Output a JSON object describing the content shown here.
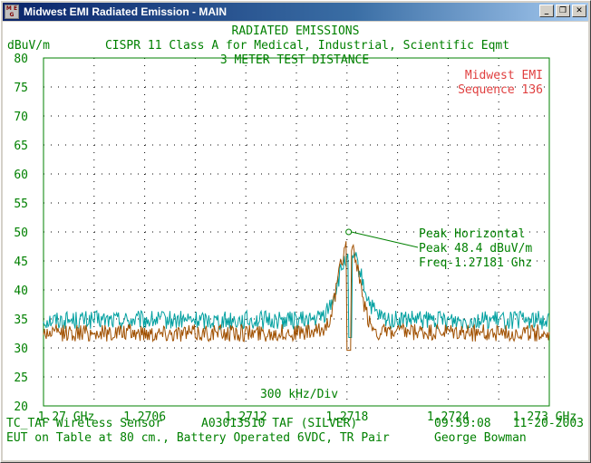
{
  "window": {
    "title": "Midwest EMI Radiated Emission - MAIN",
    "icon_label": "M E G",
    "buttons": {
      "minimize": "_",
      "maximize": "❐",
      "close": "✕"
    }
  },
  "header": {
    "line1": "RADIATED EMISSIONS",
    "line2": "CISPR 11 Class A for Medical, Industrial, Scientific Eqmt",
    "line3": "3 METER TEST DISTANCE"
  },
  "brand": {
    "name": "Midwest EMI",
    "sequence": "Sequence 136"
  },
  "footer": {
    "row1": {
      "eut": "TC_TAF Wireless Sensor",
      "id": "A03013510 TAF (SILVER)",
      "time": "09:59:08",
      "date": "11-20-2003"
    },
    "row2": {
      "setup": "EUT on Table at 80 cm., Battery Operated 6VDC, TR Pair",
      "operator": "George Bowman"
    }
  },
  "chart_data": {
    "type": "line",
    "ylabel": "dBuV/m",
    "div_label": "300 kHz/Div",
    "ylim": [
      20,
      80
    ],
    "yticks": [
      20,
      25,
      30,
      35,
      40,
      45,
      50,
      55,
      60,
      65,
      70,
      75,
      80
    ],
    "xlim": [
      1.27,
      1.273
    ],
    "xtick_values": [
      1.27,
      1.2706,
      1.2712,
      1.2718,
      1.2724,
      1.273
    ],
    "xtick_labels": [
      "1.27 GHz",
      "1.2706",
      "1.2712",
      "1.2718",
      "1.2724",
      "1.273 GHz"
    ],
    "grid": true,
    "limit_line": 80,
    "peak": {
      "label1": "Peak Horizontal",
      "label2": "Peak 48.4 dBuV/m",
      "label3": "Freq-1.27181 Ghz",
      "x": 1.27181,
      "y": 48.4,
      "marker_y": 50
    },
    "series": [
      {
        "color": "#00a0a0",
        "noise_floor": 34.8,
        "noise_amp": 1.6,
        "peak_x": 1.27182,
        "peak_y": 46.2,
        "peak_width": 7e-05
      },
      {
        "color": "#a05000",
        "noise_floor": 32.6,
        "noise_amp": 1.5,
        "peak_x": 1.27181,
        "peak_y": 48.4,
        "peak_width": 6e-05
      }
    ],
    "colors": {
      "text": "#008000",
      "axis": "#008000",
      "brand": "#e04040",
      "grid": "#000000"
    }
  }
}
